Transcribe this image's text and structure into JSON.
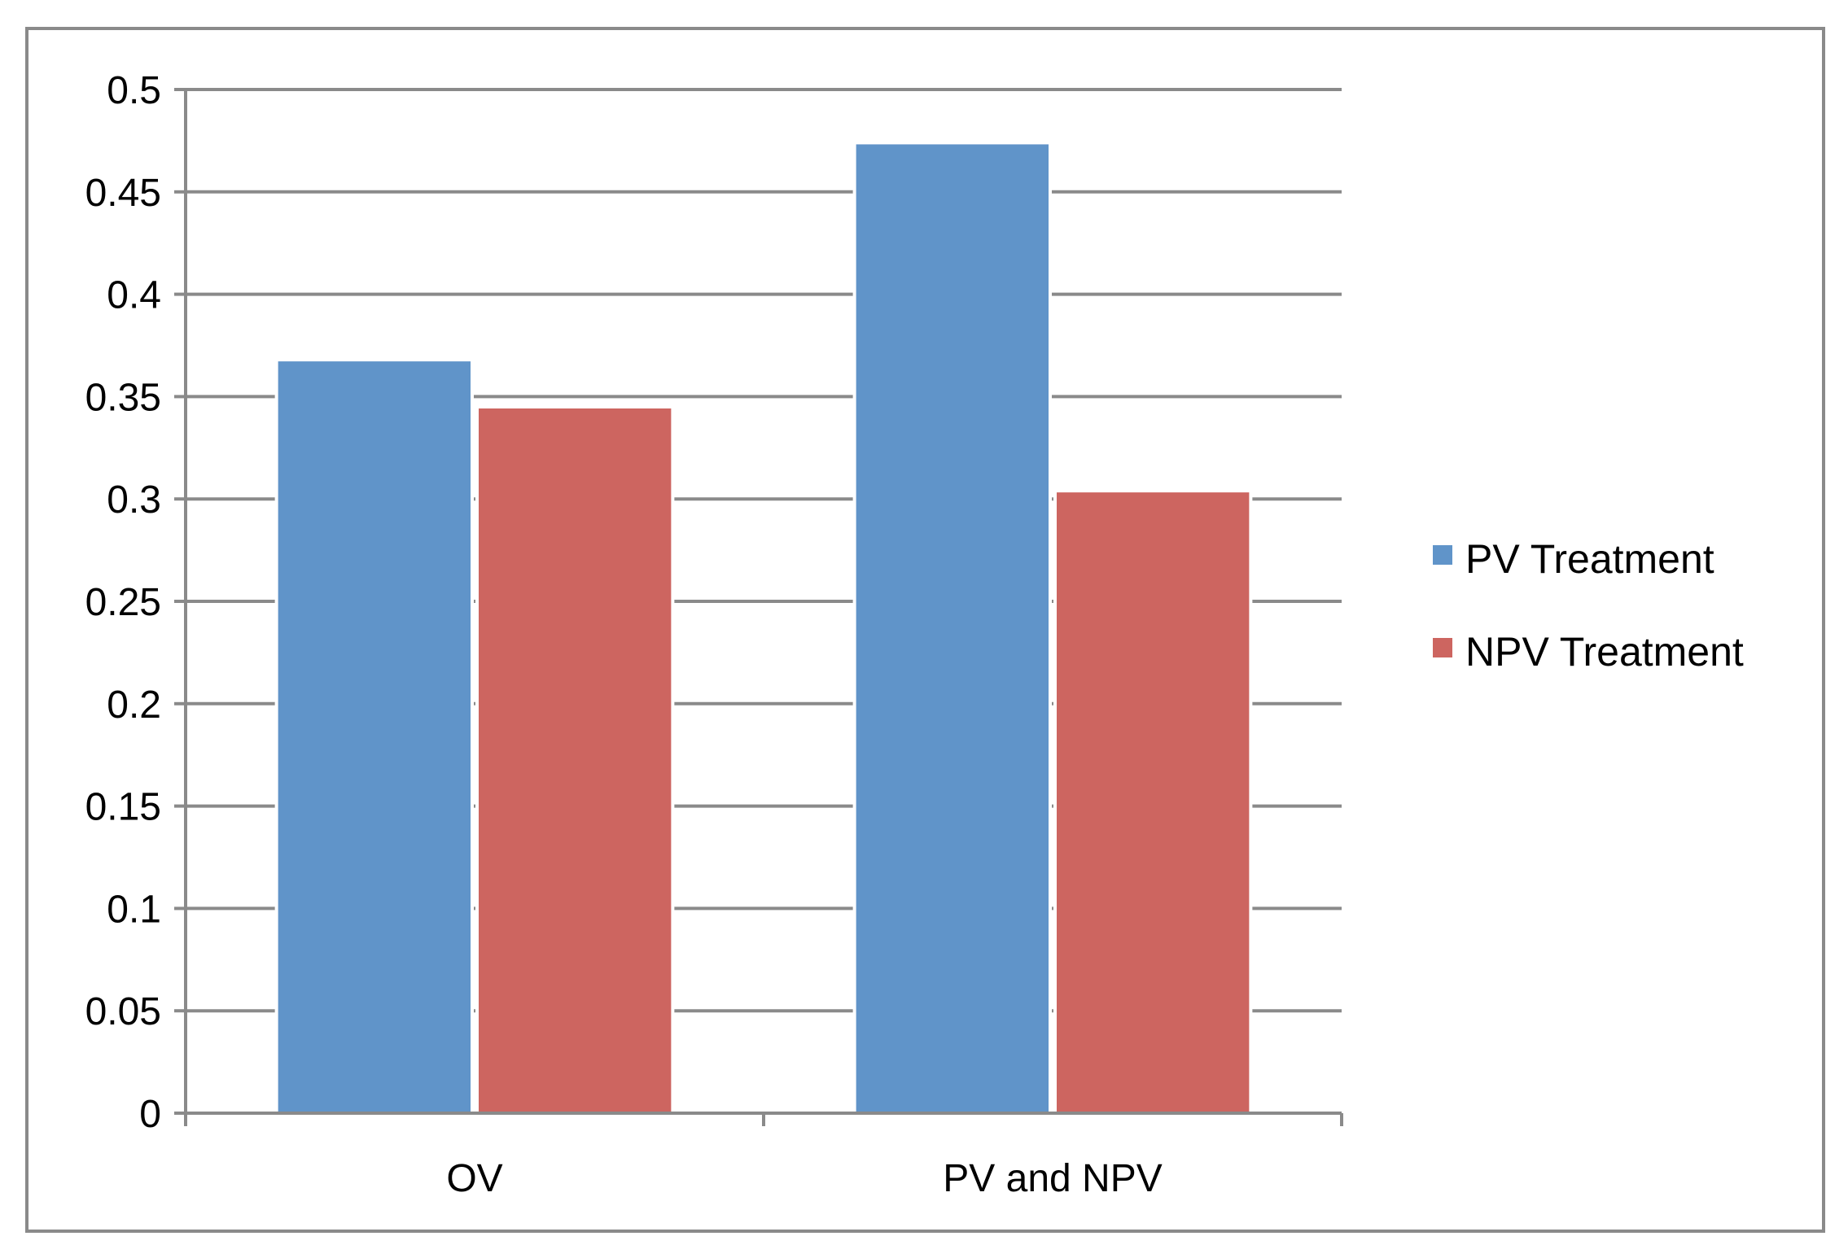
{
  "chart_data": {
    "type": "bar",
    "title": "",
    "xlabel": "",
    "ylabel": "",
    "categories": [
      "OV",
      "PV and NPV"
    ],
    "series": [
      {
        "name": "PV Treatment",
        "values": [
          0.368,
          0.474
        ]
      },
      {
        "name": "NPV Treatment",
        "values": [
          0.345,
          0.304
        ]
      }
    ],
    "ylim": [
      0,
      0.5
    ],
    "yticks": [
      "0",
      "0.05",
      "0.1",
      "0.15",
      "0.2",
      "0.25",
      "0.3",
      "0.35",
      "0.4",
      "0.45",
      "0.5"
    ],
    "grid": true,
    "legend_position": "right",
    "colors": {
      "PV Treatment": "#6094c9",
      "NPV Treatment": "#cd6560",
      "grid": "#8a8a8a",
      "frame": "#8a8a8a"
    }
  }
}
